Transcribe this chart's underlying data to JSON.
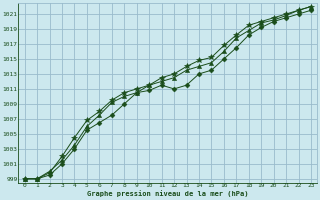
{
  "title": "Graphe pression niveau de la mer (hPa)",
  "background_color": "#cce8ee",
  "grid_color": "#99bbcc",
  "line_color": "#1a4d1a",
  "xlim": [
    -0.5,
    23.5
  ],
  "ylim": [
    998.5,
    1022.5
  ],
  "ytick_vals": [
    999,
    1001,
    1003,
    1005,
    1007,
    1009,
    1011,
    1013,
    1015,
    1017,
    1019,
    1021
  ],
  "xtick_vals": [
    0,
    1,
    2,
    3,
    4,
    5,
    6,
    7,
    8,
    9,
    10,
    11,
    12,
    13,
    14,
    15,
    16,
    17,
    18,
    19,
    20,
    21,
    22,
    23
  ],
  "series": [
    {
      "y": [
        999.0,
        999.0,
        999.5,
        1001.0,
        1003.0,
        1005.5,
        1006.5,
        1007.5,
        1009.0,
        1010.5,
        1010.8,
        1011.5,
        1011.0,
        1011.5,
        1013.0,
        1013.5,
        1015.0,
        1016.5,
        1018.2,
        1019.2,
        1020.0,
        1020.5,
        1021.0,
        1021.5
      ],
      "marker": "D",
      "markersize": 2.5
    },
    {
      "y": [
        999.0,
        999.0,
        1000.0,
        1001.5,
        1003.5,
        1006.0,
        1007.5,
        1009.2,
        1010.0,
        1010.5,
        1011.5,
        1012.0,
        1012.5,
        1013.5,
        1014.0,
        1014.5,
        1016.0,
        1017.8,
        1018.8,
        1019.8,
        1020.2,
        1020.8,
        1021.5,
        1022.0
      ],
      "marker": "^",
      "markersize": 3.0
    },
    {
      "y": [
        999.0,
        999.0,
        999.8,
        1002.0,
        1004.5,
        1006.8,
        1008.0,
        1009.5,
        1010.5,
        1011.0,
        1011.5,
        1012.5,
        1013.0,
        1014.0,
        1014.8,
        1015.2,
        1016.8,
        1018.2,
        1019.5,
        1020.0,
        1020.5,
        1021.0,
        1021.5,
        1022.0
      ],
      "marker": "*",
      "markersize": 4.0
    }
  ]
}
